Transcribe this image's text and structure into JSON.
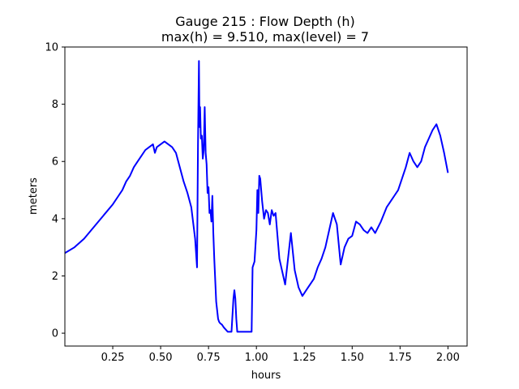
{
  "chart_data": {
    "type": "line",
    "title": "Gauge 215 : Flow Depth (h)",
    "subtitle": "max(h) =   9.510,    max(level) = 7",
    "xlabel": "hours",
    "ylabel": "meters",
    "xlim": [
      0.0,
      2.1
    ],
    "ylim": [
      -0.45,
      10
    ],
    "xticks": [
      0.25,
      0.5,
      0.75,
      1.0,
      1.25,
      1.5,
      1.75,
      2.0
    ],
    "xtick_labels": [
      "0.25",
      "0.50",
      "0.75",
      "1.00",
      "1.25",
      "1.50",
      "1.75",
      "2.00"
    ],
    "yticks": [
      0,
      2,
      4,
      6,
      8,
      10
    ],
    "ytick_labels": [
      "0",
      "2",
      "4",
      "6",
      "8",
      "10"
    ],
    "grid": false,
    "series": [
      {
        "color": "#0000ff",
        "x": [
          0.0,
          0.05,
          0.1,
          0.15,
          0.2,
          0.25,
          0.28,
          0.3,
          0.32,
          0.34,
          0.36,
          0.38,
          0.4,
          0.42,
          0.44,
          0.46,
          0.47,
          0.48,
          0.5,
          0.52,
          0.54,
          0.56,
          0.58,
          0.6,
          0.62,
          0.64,
          0.66,
          0.68,
          0.69,
          0.695,
          0.7,
          0.702,
          0.704,
          0.706,
          0.71,
          0.715,
          0.72,
          0.725,
          0.73,
          0.735,
          0.74,
          0.745,
          0.75,
          0.755,
          0.76,
          0.765,
          0.77,
          0.775,
          0.78,
          0.79,
          0.8,
          0.805,
          0.81,
          0.82,
          0.83,
          0.85,
          0.87,
          0.88,
          0.885,
          0.89,
          0.895,
          0.9,
          0.91,
          0.92,
          0.95,
          0.975,
          0.98,
          0.985,
          0.99,
          1.0,
          1.005,
          1.01,
          1.015,
          1.02,
          1.03,
          1.04,
          1.05,
          1.06,
          1.07,
          1.08,
          1.09,
          1.1,
          1.12,
          1.15,
          1.17,
          1.18,
          1.2,
          1.22,
          1.24,
          1.25,
          1.27,
          1.29,
          1.3,
          1.32,
          1.34,
          1.36,
          1.38,
          1.4,
          1.42,
          1.44,
          1.46,
          1.48,
          1.5,
          1.52,
          1.54,
          1.56,
          1.58,
          1.6,
          1.62,
          1.65,
          1.68,
          1.7,
          1.72,
          1.74,
          1.76,
          1.78,
          1.8,
          1.82,
          1.84,
          1.86,
          1.88,
          1.9,
          1.92,
          1.94,
          1.96,
          1.98,
          2.0
        ],
        "y": [
          2.8,
          3.0,
          3.3,
          3.7,
          4.1,
          4.5,
          4.8,
          5.0,
          5.3,
          5.5,
          5.8,
          6.0,
          6.2,
          6.4,
          6.5,
          6.6,
          6.3,
          6.5,
          6.6,
          6.7,
          6.6,
          6.5,
          6.3,
          5.8,
          5.3,
          4.9,
          4.4,
          3.3,
          2.3,
          6.6,
          9.51,
          8.0,
          7.2,
          7.9,
          6.8,
          6.9,
          6.1,
          6.4,
          7.9,
          6.3,
          5.9,
          4.9,
          5.1,
          4.2,
          4.3,
          3.9,
          4.8,
          3.5,
          2.6,
          1.1,
          0.5,
          0.4,
          0.35,
          0.3,
          0.2,
          0.05,
          0.05,
          1.2,
          1.5,
          1.2,
          0.5,
          0.05,
          0.05,
          0.05,
          0.05,
          0.05,
          2.3,
          2.4,
          2.5,
          3.6,
          5.0,
          4.2,
          5.5,
          5.4,
          4.6,
          4.0,
          4.3,
          4.2,
          3.8,
          4.3,
          4.1,
          4.2,
          2.6,
          1.7,
          2.9,
          3.5,
          2.2,
          1.6,
          1.3,
          1.4,
          1.6,
          1.8,
          1.9,
          2.3,
          2.6,
          3.0,
          3.6,
          4.2,
          3.8,
          2.4,
          3.0,
          3.3,
          3.4,
          3.9,
          3.8,
          3.6,
          3.5,
          3.7,
          3.5,
          3.9,
          4.4,
          4.6,
          4.8,
          5.0,
          5.4,
          5.8,
          6.3,
          6.0,
          5.8,
          6.0,
          6.5,
          6.8,
          7.1,
          7.3,
          6.9,
          6.3,
          5.6
        ]
      }
    ]
  }
}
